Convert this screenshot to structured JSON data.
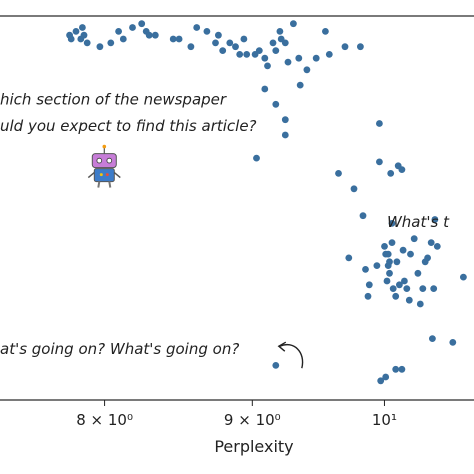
{
  "chart_data": {
    "type": "scatter",
    "xlabel": "Perplexity",
    "x_scale": "log",
    "xlim": [
      7.36,
      10.74
    ],
    "ylim": [
      0,
      1
    ],
    "x_ticks": [
      {
        "value": 8,
        "label": "8 × 10⁰"
      },
      {
        "value": 9,
        "label": "9 × 10⁰"
      },
      {
        "value": 10,
        "label": "10¹"
      }
    ],
    "grid": false,
    "marker_color": "#3a6f9e",
    "annotations": [
      {
        "text": "hich section of the newspaper",
        "x": 7.36,
        "y": 0.77
      },
      {
        "text": "uld you expect to find this article?",
        "x": 7.36,
        "y": 0.7
      },
      {
        "text": "What's t",
        "x": 10.02,
        "y": 0.45
      },
      {
        "text": "at's going on? What's going on?",
        "x": 7.36,
        "y": 0.12
      },
      {
        "icon": "robot-icon",
        "x": 7.96,
        "y": 0.6
      },
      {
        "icon": "curved-arrow-icon",
        "x": 9.17,
        "y": 0.14
      }
    ],
    "points": [
      [
        7.78,
        0.95
      ],
      [
        7.79,
        0.94
      ],
      [
        7.82,
        0.96
      ],
      [
        7.85,
        0.94
      ],
      [
        7.86,
        0.97
      ],
      [
        7.87,
        0.95
      ],
      [
        7.89,
        0.93
      ],
      [
        7.97,
        0.92
      ],
      [
        8.04,
        0.93
      ],
      [
        8.09,
        0.96
      ],
      [
        8.12,
        0.94
      ],
      [
        8.18,
        0.97
      ],
      [
        8.24,
        0.98
      ],
      [
        8.27,
        0.96
      ],
      [
        8.29,
        0.95
      ],
      [
        8.33,
        0.95
      ],
      [
        8.45,
        0.94
      ],
      [
        8.49,
        0.94
      ],
      [
        8.57,
        0.92
      ],
      [
        8.61,
        0.97
      ],
      [
        8.68,
        0.96
      ],
      [
        8.74,
        0.93
      ],
      [
        8.76,
        0.95
      ],
      [
        8.79,
        0.91
      ],
      [
        8.84,
        0.93
      ],
      [
        8.88,
        0.92
      ],
      [
        8.91,
        0.9
      ],
      [
        8.94,
        0.94
      ],
      [
        8.96,
        0.9
      ],
      [
        9.02,
        0.9
      ],
      [
        9.05,
        0.91
      ],
      [
        9.09,
        0.89
      ],
      [
        9.11,
        0.87
      ],
      [
        9.15,
        0.93
      ],
      [
        9.17,
        0.91
      ],
      [
        9.2,
        0.96
      ],
      [
        9.21,
        0.94
      ],
      [
        9.24,
        0.93
      ],
      [
        9.26,
        0.88
      ],
      [
        9.3,
        0.98
      ],
      [
        9.34,
        0.89
      ],
      [
        9.35,
        0.82
      ],
      [
        9.4,
        0.86
      ],
      [
        9.47,
        0.89
      ],
      [
        9.54,
        0.96
      ],
      [
        9.57,
        0.9
      ],
      [
        9.69,
        0.92
      ],
      [
        9.81,
        0.92
      ],
      [
        9.09,
        0.81
      ],
      [
        9.17,
        0.77
      ],
      [
        9.24,
        0.73
      ],
      [
        9.24,
        0.69
      ],
      [
        9.03,
        0.63
      ],
      [
        9.64,
        0.59
      ],
      [
        9.76,
        0.55
      ],
      [
        9.96,
        0.72
      ],
      [
        9.96,
        0.62
      ],
      [
        10.05,
        0.59
      ],
      [
        10.11,
        0.61
      ],
      [
        10.14,
        0.6
      ],
      [
        9.83,
        0.48
      ],
      [
        10.06,
        0.46
      ],
      [
        9.72,
        0.37
      ],
      [
        9.85,
        0.34
      ],
      [
        9.87,
        0.27
      ],
      [
        9.88,
        0.3
      ],
      [
        9.94,
        0.35
      ],
      [
        10.0,
        0.4
      ],
      [
        10.01,
        0.38
      ],
      [
        10.02,
        0.31
      ],
      [
        10.03,
        0.38
      ],
      [
        10.04,
        0.33
      ],
      [
        10.06,
        0.41
      ],
      [
        10.07,
        0.29
      ],
      [
        10.09,
        0.27
      ],
      [
        10.12,
        0.3
      ],
      [
        10.15,
        0.39
      ],
      [
        10.16,
        0.31
      ],
      [
        10.18,
        0.29
      ],
      [
        10.21,
        0.38
      ],
      [
        10.24,
        0.42
      ],
      [
        10.27,
        0.33
      ],
      [
        10.29,
        0.25
      ],
      [
        10.31,
        0.29
      ],
      [
        10.33,
        0.36
      ],
      [
        10.35,
        0.37
      ],
      [
        10.38,
        0.41
      ],
      [
        10.41,
        0.47
      ],
      [
        10.03,
        0.35
      ],
      [
        10.04,
        0.36
      ],
      [
        10.1,
        0.36
      ],
      [
        10.2,
        0.26
      ],
      [
        10.4,
        0.29
      ],
      [
        10.43,
        0.4
      ],
      [
        10.39,
        0.16
      ],
      [
        10.56,
        0.15
      ],
      [
        10.65,
        0.32
      ],
      [
        9.97,
        0.05
      ],
      [
        10.01,
        0.06
      ],
      [
        10.09,
        0.08
      ],
      [
        10.14,
        0.08
      ],
      [
        9.17,
        0.09
      ]
    ]
  }
}
